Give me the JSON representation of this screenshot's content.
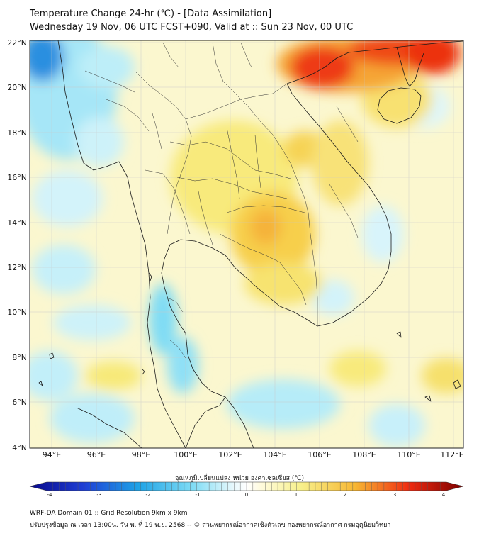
{
  "header": {
    "title": "Temperature Change 24-hr (℃) - [Data Assimilation]",
    "subtitle": "Wednesday 19 Nov, 06 UTC FCST+090, Valid at :: Sun 23 Nov, 00 UTC"
  },
  "map": {
    "lon_labels": [
      "94°E",
      "96°E",
      "98°E",
      "100°E",
      "102°E",
      "104°E",
      "106°E",
      "108°E",
      "110°E",
      "112°E"
    ],
    "lat_labels": [
      "22°N",
      "20°N",
      "18°N",
      "16°N",
      "14°N",
      "12°N",
      "10°N",
      "8°N",
      "6°N",
      "4°N"
    ],
    "lon_range": [
      93,
      112.4
    ],
    "lat_range": [
      4,
      22.2
    ]
  },
  "colorbar": {
    "label": "อุณหภูมิเปลี่ยนแปลง หน่วย องศาเซลเซียส (℃)",
    "ticks": [
      "-4",
      "-3",
      "-2",
      "-1",
      "0",
      "1",
      "2",
      "3",
      "4"
    ],
    "min": -4,
    "max": 4,
    "colors": {
      "neg4": "#08088a",
      "neg3": "#1f3fd6",
      "neg2": "#1fa3e6",
      "neg1": "#7fdcf5",
      "zero": "#ffffff",
      "pos1": "#f7f08c",
      "pos2": "#f7b733",
      "pos3": "#ef2a10",
      "pos4": "#7a0000"
    }
  },
  "footer": {
    "line1": "WRF-DA Domain 01 :: Grid Resolution 9km x 9km",
    "line2": "ปรับปรุงข้อมูล ณ เวลา 13:00น. วัน พ. ที่ 19 พ.ย. 2568 -- © ส่วนพยากรณ์อากาศเชิงตัวเลข กองพยากรณ์อากาศ กรมอุตุนิยมวิทยา"
  }
}
